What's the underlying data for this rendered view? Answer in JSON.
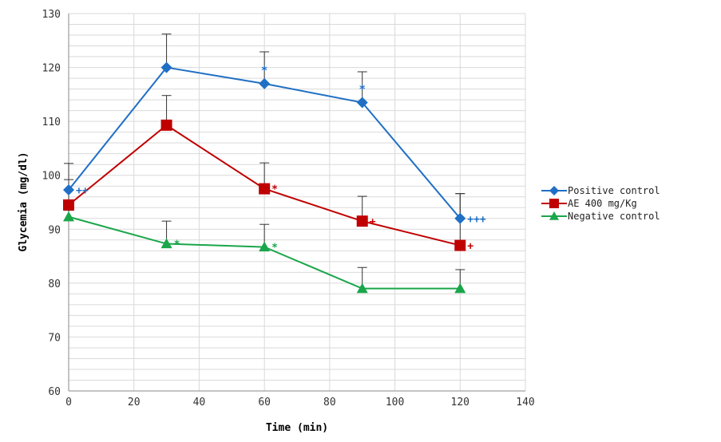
{
  "chart_data": {
    "type": "line",
    "title": "",
    "xlabel": "Time (min)",
    "ylabel": "Glycemia (mg/dl)",
    "xlim": [
      0,
      140
    ],
    "ylim": [
      60,
      130
    ],
    "xticks": [
      0,
      20,
      40,
      60,
      80,
      100,
      120,
      140
    ],
    "yticks": [
      60,
      70,
      80,
      90,
      100,
      110,
      120,
      130
    ],
    "grid": true,
    "legend_position": "right",
    "x": [
      0,
      30,
      60,
      90,
      120
    ],
    "series": [
      {
        "name": "Positive control",
        "color": "#1f6fc5",
        "marker": "diamond",
        "values": [
          97.3,
          120,
          117,
          113.5,
          92
        ],
        "error_upper": [
          102.2,
          126.2,
          122.9,
          119.2,
          96.6
        ],
        "annotations": [
          "++",
          "",
          "*",
          "*",
          "+++"
        ]
      },
      {
        "name": "AE 400 mg/Kg",
        "color": "#c00000",
        "marker": "square",
        "values": [
          94.5,
          109.3,
          97.5,
          91.5,
          87
        ],
        "error_upper": [
          99.2,
          114.8,
          102.3,
          96.1,
          96.6
        ],
        "annotations": [
          "",
          "",
          "*",
          "+",
          "+"
        ]
      },
      {
        "name": "Negative control",
        "color": "#1aa64a",
        "marker": "triangle",
        "values": [
          92.3,
          87.3,
          86.7,
          79,
          79
        ],
        "error_upper": [
          93.5,
          91.5,
          90.9,
          82.9,
          82.5
        ],
        "annotations": [
          "",
          "*",
          "*",
          "",
          ""
        ]
      }
    ]
  }
}
